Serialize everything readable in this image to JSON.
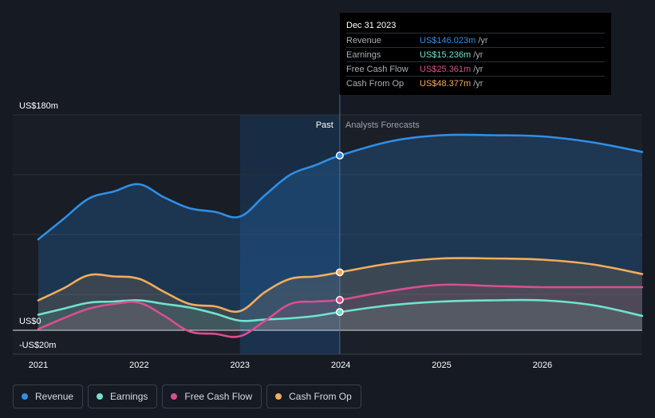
{
  "tooltip": {
    "date": "Dec 31 2023",
    "rows": [
      {
        "label": "Revenue",
        "value": "US$146.023m",
        "unit": "/yr",
        "color": "#2f8fe6"
      },
      {
        "label": "Earnings",
        "value": "US$15.236m",
        "unit": "/yr",
        "color": "#6fe3cf"
      },
      {
        "label": "Free Cash Flow",
        "value": "US$25.361m",
        "unit": "/yr",
        "color": "#d94f8f"
      },
      {
        "label": "Cash From Op",
        "value": "US$48.377m",
        "unit": "/yr",
        "color": "#f0ad5c"
      }
    ]
  },
  "legend": [
    {
      "label": "Revenue",
      "color": "#2f8fe6"
    },
    {
      "label": "Earnings",
      "color": "#6fe3cf"
    },
    {
      "label": "Free Cash Flow",
      "color": "#d94f8f"
    },
    {
      "label": "Cash From Op",
      "color": "#f0ad5c"
    }
  ],
  "chart_data": {
    "type": "area",
    "title": "",
    "xlabel": "",
    "ylabel": "",
    "x_ticks": [
      "2021",
      "2022",
      "2023",
      "2024",
      "2025",
      "2026"
    ],
    "x_range": [
      2021.0,
      2026.99
    ],
    "y_tick_labels": [
      {
        "value": 180,
        "label": "US$180m"
      },
      {
        "value": 0,
        "label": "US$0"
      },
      {
        "value": -20,
        "label": "-US$20m"
      }
    ],
    "ylim": [
      -20,
      180
    ],
    "gridlines": [
      180,
      130,
      80,
      30
    ],
    "past_label": "Past",
    "forecast_label": "Analysts Forecasts",
    "divider_x": 2023.99,
    "highlight_start": 2023.0,
    "series": [
      {
        "name": "Revenue",
        "color": "#2f8fe6",
        "x": [
          2021.0,
          2021.25,
          2021.5,
          2021.75,
          2022.0,
          2022.25,
          2022.5,
          2022.75,
          2023.0,
          2023.25,
          2023.5,
          2023.75,
          2023.99,
          2024.5,
          2025.0,
          2025.5,
          2026.0,
          2026.5,
          2026.99
        ],
        "values": [
          76,
          93,
          110,
          116,
          122,
          111,
          102,
          99,
          95,
          113,
          130,
          138,
          146,
          158,
          163,
          163,
          162,
          157,
          149
        ]
      },
      {
        "name": "Earnings",
        "color": "#6fe3cf",
        "x": [
          2021.0,
          2021.25,
          2021.5,
          2021.75,
          2022.0,
          2022.25,
          2022.5,
          2022.75,
          2023.0,
          2023.25,
          2023.5,
          2023.75,
          2023.99,
          2024.5,
          2025.0,
          2025.5,
          2026.0,
          2026.5,
          2026.99
        ],
        "values": [
          13,
          18,
          23,
          24,
          25,
          22,
          19,
          14,
          8,
          9,
          10,
          12,
          15.2,
          21,
          24,
          25,
          25,
          21,
          12
        ]
      },
      {
        "name": "Free Cash Flow",
        "color": "#d94f8f",
        "x": [
          2021.0,
          2021.25,
          2021.5,
          2021.75,
          2022.0,
          2022.25,
          2022.5,
          2022.75,
          2023.0,
          2023.25,
          2023.5,
          2023.75,
          2023.99,
          2024.5,
          2025.0,
          2025.5,
          2026.0,
          2026.5,
          2026.99
        ],
        "values": [
          1,
          10,
          18,
          22,
          23,
          12,
          -1,
          -3,
          -5,
          8,
          22,
          24,
          25.4,
          33,
          38,
          37,
          36,
          36,
          36
        ]
      },
      {
        "name": "Cash From Op",
        "color": "#f0ad5c",
        "x": [
          2021.0,
          2021.25,
          2021.5,
          2021.75,
          2022.0,
          2022.25,
          2022.5,
          2022.75,
          2023.0,
          2023.25,
          2023.5,
          2023.75,
          2023.99,
          2024.5,
          2025.0,
          2025.5,
          2026.0,
          2026.5,
          2026.99
        ],
        "values": [
          25,
          35,
          46,
          45,
          43,
          32,
          22,
          20,
          16,
          32,
          43,
          45,
          48.4,
          56,
          60,
          60,
          59,
          55,
          47
        ]
      }
    ],
    "highlight_x": 2023.99,
    "highlight_values": {
      "Revenue": 146.023,
      "Earnings": 15.236,
      "Free Cash Flow": 25.361,
      "Cash From Op": 48.377
    }
  }
}
